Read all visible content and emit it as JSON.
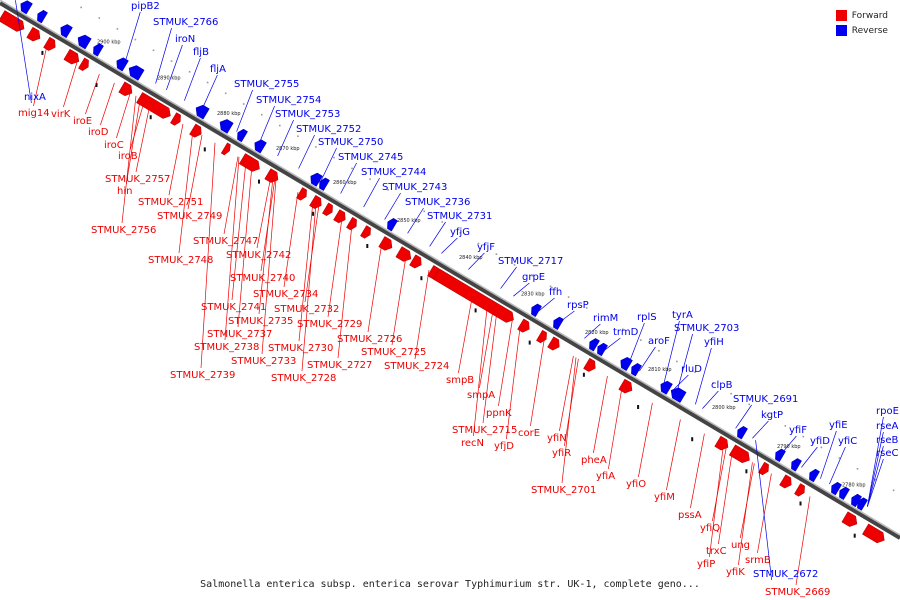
{
  "caption": "Salmonella enterica subsp. enterica serovar Typhimurium str. UK-1, complete geno...",
  "legend": [
    {
      "label": "Forward",
      "color": "#ee0000"
    },
    {
      "label": "Reverse",
      "color": "#0000ee"
    }
  ],
  "colors": {
    "forward": "#ee0000",
    "reverse": "#0000ee",
    "backbone": "#444444"
  },
  "ticks": [
    "2900 kbp",
    "2890 kbp",
    "2880 kbp",
    "2870 kbp",
    "2860 kbp",
    "2850 kbp",
    "2840 kbp",
    "2830 kbp",
    "2820 kbp",
    "2810 kbp",
    "2800 kbp",
    "2790 kbp",
    "2780 kbp"
  ],
  "forward_labels": [
    "mig14",
    "virK",
    "iroE",
    "iroD",
    "iroC",
    "iroB",
    "STMUK_2757",
    "hin",
    "STMUK_2751",
    "STMUK_2749",
    "STMUK_2756",
    "STMUK_2747",
    "STMUK_2742",
    "STMUK_2748",
    "STMUK_2740",
    "STMUK_2734",
    "STMUK_2741",
    "STMUK_2732",
    "STMUK_2735",
    "STMUK_2737",
    "STMUK_2729",
    "STMUK_2738",
    "STMUK_2726",
    "STMUK_2730",
    "STMUK_2733",
    "STMUK_2727",
    "STMUK_2725",
    "STMUK_2739",
    "STMUK_2728",
    "STMUK_2724",
    "smpB",
    "smpA",
    "ppnK",
    "STMUK_2715",
    "recN",
    "corE",
    "yfjD",
    "yfiN",
    "yfiR",
    "pheA",
    "yfiA",
    "yfiO",
    "STMUK_2701",
    "yfiM",
    "pssA",
    "yfiQ",
    "trxC",
    "ung",
    "yfiP",
    "srmB",
    "yfiK",
    "STMUK_2669"
  ],
  "reverse_labels": [
    "pipB2",
    "STMUK_2766",
    "iroN",
    "fljB",
    "nixA",
    "fljA",
    "STMUK_2755",
    "STMUK_2754",
    "STMUK_2753",
    "STMUK_2752",
    "STMUK_2750",
    "STMUK_2745",
    "STMUK_2744",
    "STMUK_2743",
    "STMUK_2736",
    "STMUK_2731",
    "yfjG",
    "yfjF",
    "STMUK_2717",
    "grpE",
    "ffh",
    "rpsP",
    "rimM",
    "trmD",
    "rplS",
    "tyrA",
    "STMUK_2703",
    "aroF",
    "yfiH",
    "rluD",
    "clpB",
    "STMUK_2691",
    "kgtP",
    "yfiF",
    "yfiE",
    "yfiD",
    "yfiC",
    "rpoE",
    "rseA",
    "rseB",
    "rseC",
    "STMUK_2672"
  ]
}
